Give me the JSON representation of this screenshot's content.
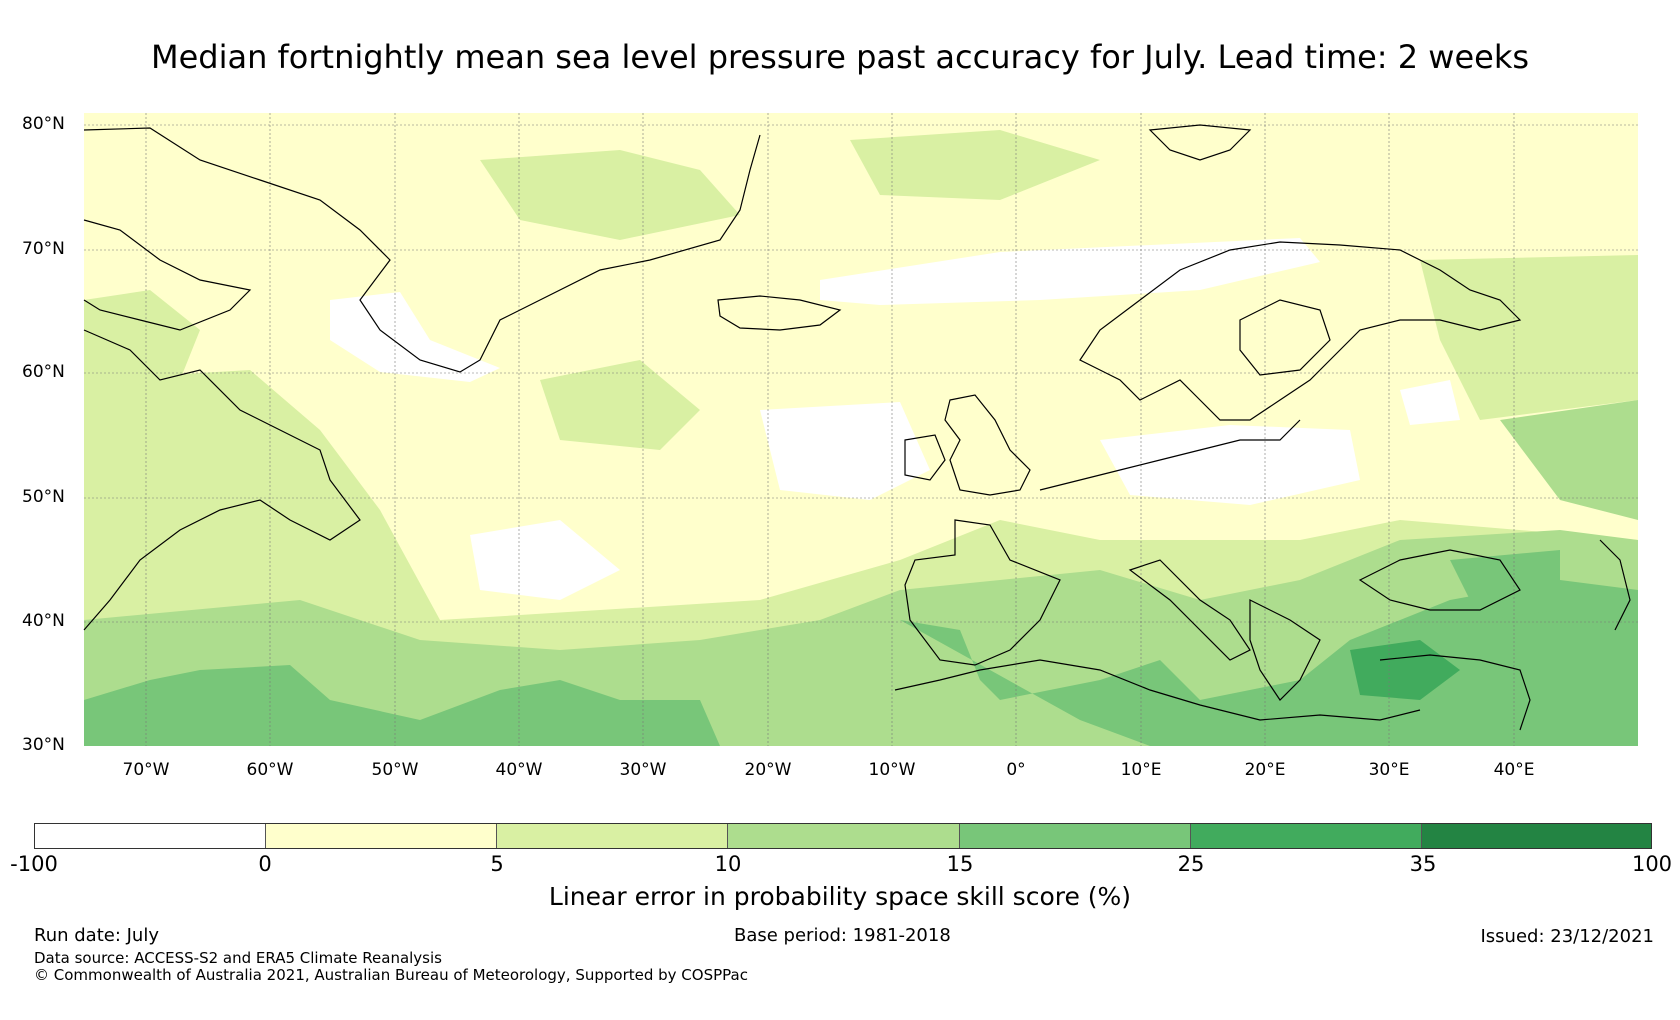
{
  "title": "Median fortnightly mean sea level pressure past accuracy for July. Lead time: 2 weeks",
  "map": {
    "lat_labels": [
      "80°N",
      "70°N",
      "60°N",
      "50°N",
      "40°N",
      "30°N"
    ],
    "lon_labels": [
      "70°W",
      "60°W",
      "50°W",
      "40°W",
      "30°W",
      "20°W",
      "10°W",
      "0°",
      "10°E",
      "20°E",
      "30°E",
      "40°E"
    ],
    "lon_range": [
      -75,
      50
    ],
    "lat_range": [
      29,
      81
    ]
  },
  "colorbar": {
    "label": "Linear error in probability space skill score (%)",
    "ticks": [
      "-100",
      "0",
      "5",
      "10",
      "15",
      "25",
      "35",
      "100"
    ],
    "colors": [
      "#ffffff",
      "#ffffcc",
      "#d9f0a3",
      "#addd8e",
      "#78c679",
      "#41ab5d",
      "#238443"
    ]
  },
  "footer": {
    "run_date": "Run date: July",
    "base_period": "Base period: 1981-2018",
    "issued": "Issued: 23/12/2021",
    "data_source": "Data source: ACCESS-S2 and ERA5 Climate Reanalysis",
    "copyright": "© Commonwealth of Australia 2021, Australian Bureau of Meteorology, Supported by COSPPac"
  }
}
